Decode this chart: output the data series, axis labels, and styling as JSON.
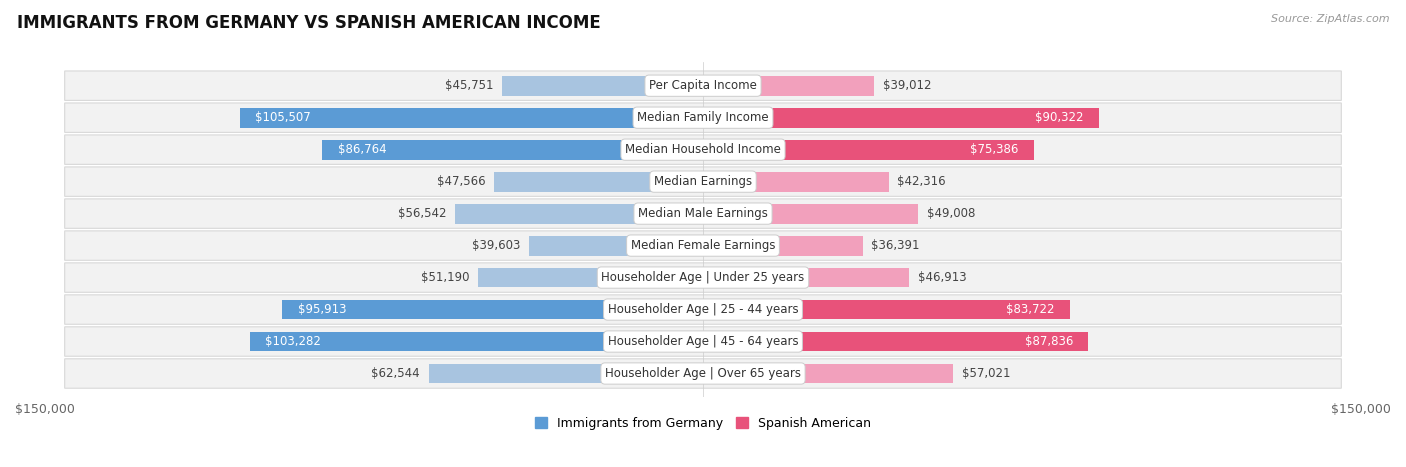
{
  "title": "IMMIGRANTS FROM GERMANY VS SPANISH AMERICAN INCOME",
  "source": "Source: ZipAtlas.com",
  "categories": [
    "Per Capita Income",
    "Median Family Income",
    "Median Household Income",
    "Median Earnings",
    "Median Male Earnings",
    "Median Female Earnings",
    "Householder Age | Under 25 years",
    "Householder Age | 25 - 44 years",
    "Householder Age | 45 - 64 years",
    "Householder Age | Over 65 years"
  ],
  "germany_values": [
    45751,
    105507,
    86764,
    47566,
    56542,
    39603,
    51190,
    95913,
    103282,
    62544
  ],
  "spanish_values": [
    39012,
    90322,
    75386,
    42316,
    49008,
    36391,
    46913,
    83722,
    87836,
    57021
  ],
  "germany_color_light": "#a8c4e0",
  "germany_color_dark": "#5b9bd5",
  "spanish_color_light": "#f2a0bc",
  "spanish_color_dark": "#e8527a",
  "xlim": 150000,
  "bar_height": 0.62,
  "row_bg": "#f2f2f2",
  "row_border": "#d8d8d8",
  "label_fontsize": 8.5,
  "title_fontsize": 12,
  "legend_fontsize": 9,
  "germany_dark_threshold": 85000,
  "spanish_dark_threshold": 75000
}
